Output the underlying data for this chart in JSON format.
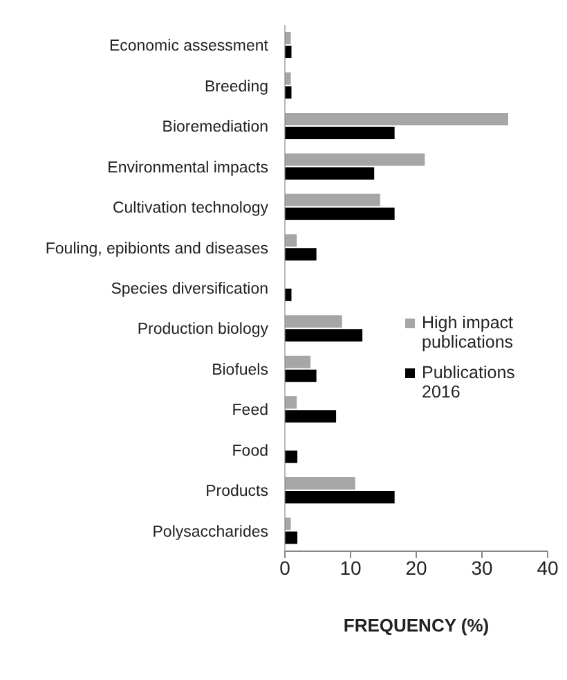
{
  "chart_data": {
    "type": "bar",
    "orientation": "horizontal",
    "xlabel": "FREQUENCY (%)",
    "categories": [
      "Economic assessment",
      "Breeding",
      "Bioremediation",
      "Environmental impacts",
      "Cultivation technology",
      "Fouling, epibionts and diseases",
      "Species diversification",
      "Production biology",
      "Biofuels",
      "Feed",
      "Food",
      "Products",
      "Polysaccharides"
    ],
    "series": [
      {
        "name": "High impact publications",
        "color": "#a6a6a6",
        "values": [
          0.9,
          0.9,
          34,
          21.3,
          14.5,
          1.8,
          0,
          8.7,
          3.9,
          1.8,
          0,
          10.7,
          0.9
        ]
      },
      {
        "name": "Publications 2016",
        "color": "#000000",
        "values": [
          1,
          1,
          16.7,
          13.6,
          16.7,
          4.8,
          1,
          11.8,
          4.8,
          7.8,
          1.9,
          16.7,
          1.9
        ]
      }
    ],
    "xlim": [
      0,
      40
    ],
    "xticks": [
      0,
      10,
      20,
      30,
      40
    ],
    "grid": false,
    "legend": "right"
  }
}
